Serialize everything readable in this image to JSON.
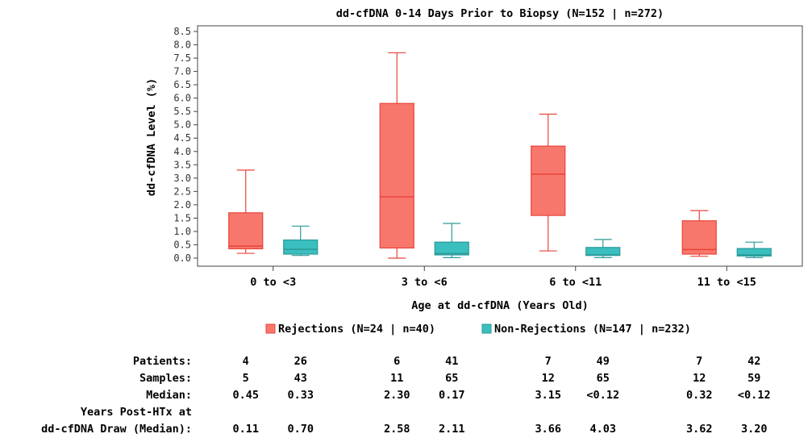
{
  "chart_data": {
    "type": "box",
    "title": "dd-cfDNA 0-14 Days Prior to Biopsy (N=152 | n=272)",
    "xlabel": "Age at dd-cfDNA (Years Old)",
    "ylabel": "dd-cfDNA Level (%)",
    "ylim": [
      0,
      8.7
    ],
    "yticks": [
      "0.0",
      "0.5",
      "1.0",
      "1.5",
      "2.0",
      "2.5",
      "3.0",
      "3.5",
      "4.0",
      "4.5",
      "5.0",
      "5.5",
      "6.0",
      "6.5",
      "7.0",
      "7.5",
      "8.0",
      "8.5"
    ],
    "categories": [
      "0 to <3",
      "3 to <6",
      "6 to <11",
      "11 to <15"
    ],
    "series": [
      {
        "name": "Rejections (N=24 | n=40)",
        "color": "#f8776c",
        "edge": "#e8443a",
        "boxes": [
          {
            "min": 0.18,
            "q1": 0.35,
            "median": 0.45,
            "q3": 1.7,
            "max": 3.3
          },
          {
            "min": 0.0,
            "q1": 0.38,
            "median": 2.3,
            "q3": 5.8,
            "max": 7.7
          },
          {
            "min": 0.27,
            "q1": 1.6,
            "median": 3.15,
            "q3": 4.2,
            "max": 5.4
          },
          {
            "min": 0.07,
            "q1": 0.15,
            "median": 0.32,
            "q3": 1.4,
            "max": 1.78
          }
        ]
      },
      {
        "name": "Non-Rejections (N=147 | n=232)",
        "color": "#3bbfbe",
        "edge": "#2a9a99",
        "boxes": [
          {
            "min": 0.1,
            "q1": 0.15,
            "median": 0.33,
            "q3": 0.68,
            "max": 1.2
          },
          {
            "min": 0.02,
            "q1": 0.12,
            "median": 0.17,
            "q3": 0.6,
            "max": 1.3
          },
          {
            "min": 0.02,
            "q1": 0.1,
            "median": 0.12,
            "q3": 0.4,
            "max": 0.7
          },
          {
            "min": 0.02,
            "q1": 0.08,
            "median": 0.12,
            "q3": 0.36,
            "max": 0.6
          }
        ]
      }
    ],
    "grid": false,
    "legend": "bottom"
  },
  "stats_table": {
    "rows": [
      {
        "label": "Patients:",
        "values": [
          "4",
          "26",
          "6",
          "41",
          "7",
          "49",
          "7",
          "42"
        ]
      },
      {
        "label": "Samples:",
        "values": [
          "5",
          "43",
          "11",
          "65",
          "12",
          "65",
          "12",
          "59"
        ]
      },
      {
        "label": "Median:",
        "values": [
          "0.45",
          "0.33",
          "2.30",
          "0.17",
          "3.15",
          "<0.12",
          "0.32",
          "<0.12"
        ]
      },
      {
        "label": "Years Post-HTx at",
        "values": []
      },
      {
        "label": "dd-cfDNA Draw (Median):",
        "values": [
          "0.11",
          "0.70",
          "2.58",
          "2.11",
          "3.66",
          "4.03",
          "3.62",
          "3.20"
        ]
      }
    ]
  }
}
